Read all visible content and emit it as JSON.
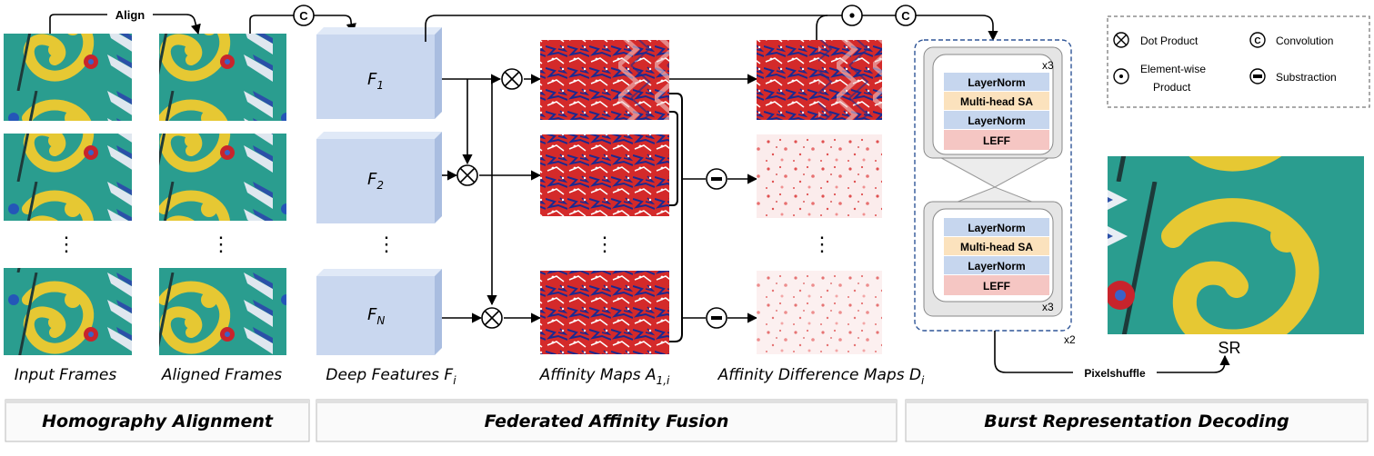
{
  "colors": {
    "feature_block": "#c9d7ef",
    "layernorm": "#c6d6ee",
    "multihead": "#fbe2bd",
    "leff": "#f5c6c3",
    "dashed_border": "#2f5597",
    "teal": "#2a9d8f",
    "dragon_yellow": "#e6c833",
    "affinity_red": "#d32020",
    "affinity_blue": "#1a2a8a"
  },
  "top_labels": {
    "align": "Align"
  },
  "features": {
    "f1": "F1",
    "f2": "F2",
    "fn": "FN",
    "sub1": "1",
    "sub2": "2",
    "subn": "N"
  },
  "captions": {
    "input_frames": "Input Frames",
    "aligned_frames": "Aligned Frames",
    "deep_features": "Deep Features F",
    "deep_features_sub": "i",
    "affinity_maps": "Affinity Maps A",
    "affinity_maps_sub": "1,i",
    "affinity_diff": "Affinity Difference Maps D",
    "affinity_diff_sub": "i"
  },
  "legend": {
    "dot_product": "Dot Product",
    "convolution": "Convolution",
    "elementwise_line1": "Element-wise",
    "elementwise_line2": "Product",
    "subtraction": "Substraction"
  },
  "transformer": {
    "layernorm": "LayerNorm",
    "multihead": "Multi-head SA",
    "leff": "LEFF",
    "x3": "x3",
    "x2": "x2"
  },
  "decoding": {
    "pixelshuffle": "Pixelshuffle",
    "sr": "SR"
  },
  "sections": {
    "homography": "Homography Alignment",
    "federated": "Federated Affinity Fusion",
    "burst": "Burst Representation Decoding"
  },
  "symbols": {
    "conv": "C",
    "dots": "⋮"
  }
}
